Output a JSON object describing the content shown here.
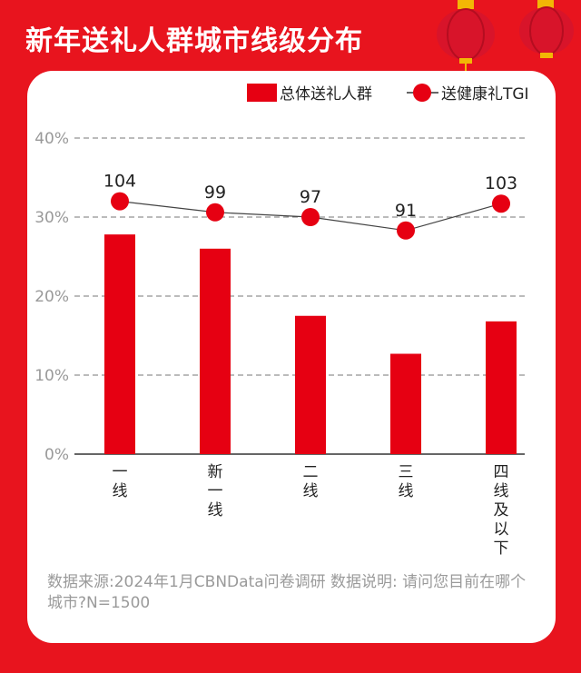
{
  "title": "新年送礼人群城市线级分布",
  "footnote": "数据来源:2024年1月CBNData问卷调研 数据说明: 请问您目前在哪个城市?N=1500",
  "colors": {
    "background": "#e8141e",
    "bar": "#e60012",
    "tgi_marker": "#e60012"
  },
  "chart_data": {
    "type": "bar",
    "categories": [
      "一线",
      "新一线",
      "二线",
      "三线",
      "四线及以下"
    ],
    "series": [
      {
        "name": "总体送礼人群",
        "type": "bar",
        "values": [
          27.8,
          26.0,
          17.5,
          12.7,
          16.8
        ]
      },
      {
        "name": "送健康礼TGI",
        "type": "line",
        "values": [
          104,
          99,
          97,
          91,
          103
        ],
        "display_position_pct": [
          32.0,
          30.6,
          30.0,
          28.3,
          31.7
        ]
      }
    ],
    "yticks": [
      "0%",
      "10%",
      "20%",
      "30%",
      "40%"
    ],
    "ylim": [
      0,
      40
    ],
    "grid": true,
    "legend_position": "top-right"
  }
}
